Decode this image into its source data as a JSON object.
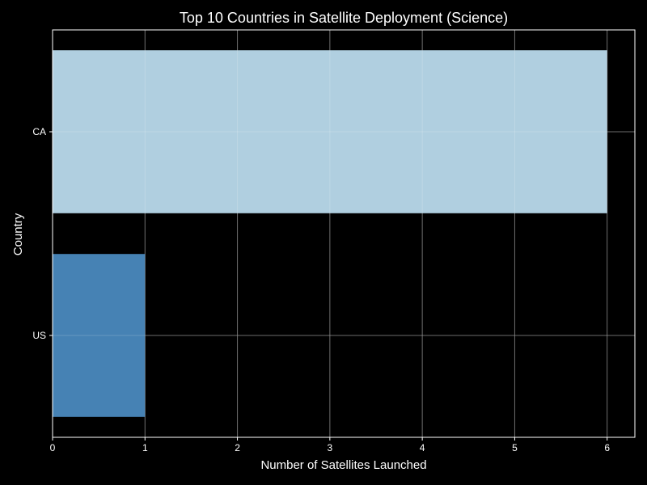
{
  "chart_data": {
    "type": "bar",
    "orientation": "horizontal",
    "title": "Top 10 Countries in Satellite Deployment (Science)",
    "xlabel": "Number of Satellites Launched",
    "ylabel": "Country",
    "categories": [
      "US",
      "CA"
    ],
    "values": [
      1,
      6
    ],
    "bar_colors": [
      "#4682b4",
      "#b0cfe0"
    ],
    "xlim": [
      0,
      6.3
    ],
    "xticks": [
      0,
      1,
      2,
      3,
      4,
      5,
      6
    ],
    "grid": true
  },
  "colors": {
    "background": "#000000",
    "text": "#ffffff",
    "grid": "#555555",
    "axes": "#ffffff"
  }
}
